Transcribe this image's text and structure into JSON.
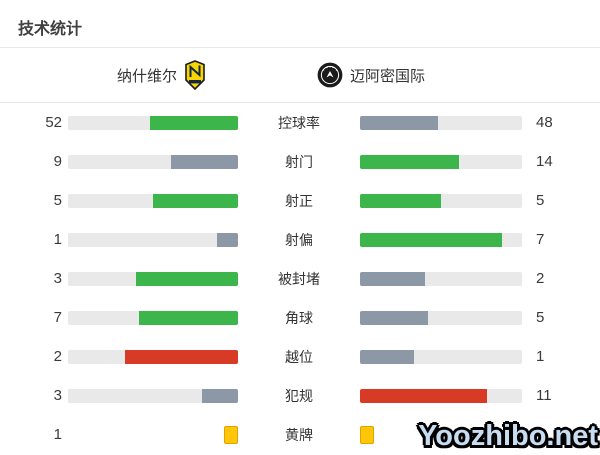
{
  "title": "技术统计",
  "header": {
    "home_team": "纳什维尔",
    "away_team": "迈阿密国际"
  },
  "colors": {
    "green": "#3cb54a",
    "gray": "#8d98a7",
    "red": "#d73b26",
    "yellow": "#ffc60a",
    "yellow_border": "#dfa400",
    "track": "#e9e9e9"
  },
  "rows": [
    {
      "label": "控球率",
      "left": "52",
      "right": "48",
      "left_color": "green",
      "right_color": "gray",
      "type": "bar"
    },
    {
      "label": "射门",
      "left": "9",
      "right": "14",
      "left_color": "gray",
      "right_color": "green",
      "type": "bar"
    },
    {
      "label": "射正",
      "left": "5",
      "right": "5",
      "left_color": "green",
      "right_color": "green",
      "type": "bar"
    },
    {
      "label": "射偏",
      "left": "1",
      "right": "7",
      "left_color": "gray",
      "right_color": "green",
      "type": "bar"
    },
    {
      "label": "被封堵",
      "left": "3",
      "right": "2",
      "left_color": "green",
      "right_color": "gray",
      "type": "bar"
    },
    {
      "label": "角球",
      "left": "7",
      "right": "5",
      "left_color": "green",
      "right_color": "gray",
      "type": "bar"
    },
    {
      "label": "越位",
      "left": "2",
      "right": "1",
      "left_color": "red",
      "right_color": "gray",
      "type": "bar"
    },
    {
      "label": "犯规",
      "left": "3",
      "right": "11",
      "left_color": "gray",
      "right_color": "red",
      "type": "bar"
    },
    {
      "label": "黄牌",
      "left": "1",
      "right": "",
      "left_color": "yellow",
      "right_color": "yellow",
      "type": "cards"
    }
  ],
  "watermark": "Yoozhibo.net",
  "chart_data": {
    "type": "bar",
    "title": "技术统计",
    "categories": [
      "控球率",
      "射门",
      "射正",
      "射偏",
      "被封堵",
      "角球",
      "越位",
      "犯规",
      "黄牌"
    ],
    "series": [
      {
        "name": "纳什维尔",
        "values": [
          52,
          9,
          5,
          1,
          3,
          7,
          2,
          3,
          1
        ]
      },
      {
        "name": "迈阿密国际",
        "values": [
          48,
          14,
          5,
          7,
          2,
          5,
          1,
          11,
          null
        ]
      }
    ],
    "layout_hints": "paired horizontal bars anchored toward center; bar length = value/(home+away); green = leading side, gray = trailing side, red = leader in negative stat (越位/犯规), 黄牌 shown as yellow card icons; away 黄牌 value hidden by watermark"
  }
}
